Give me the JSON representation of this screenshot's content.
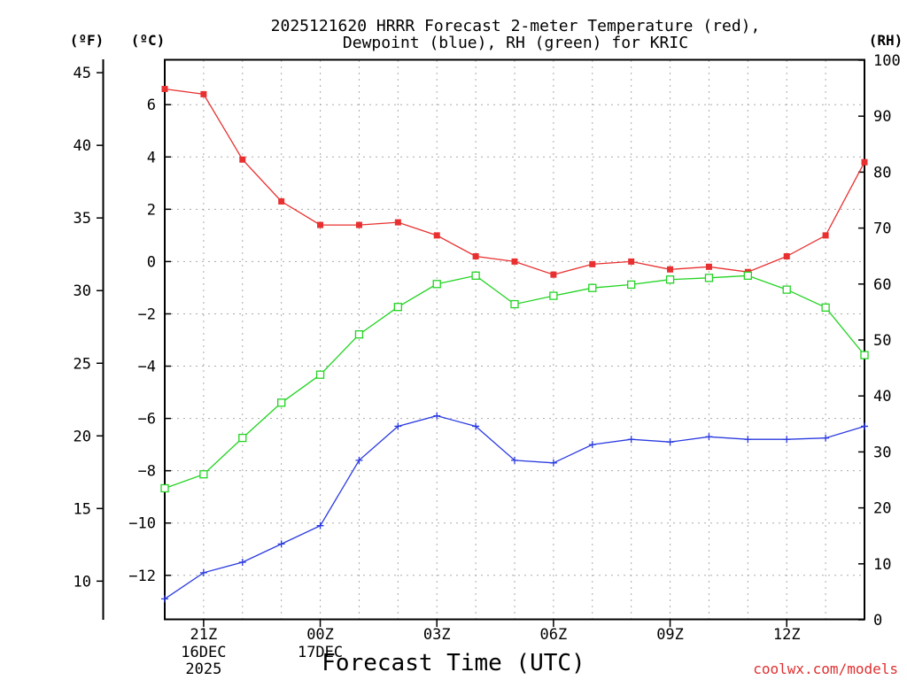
{
  "header": {
    "title_line1": "2025121620 HRRR Forecast 2-meter Temperature (red),",
    "title_line2": "Dewpoint (blue), RH (green) for KRIC",
    "unit_f": "(ºF)",
    "unit_c": "(ºC)",
    "unit_rh": "(RH)"
  },
  "footer": {
    "xlabel": "Forecast Time (UTC)",
    "credit": "coolwx.com/models"
  },
  "chart_data": {
    "type": "line",
    "title": "2025121620 HRRR Forecast 2-meter Temperature (red), Dewpoint (blue), RH (green) for KRIC",
    "xlabel": "Forecast Time (UTC)",
    "x_hours": [
      20,
      21,
      22,
      23,
      24,
      25,
      26,
      27,
      28,
      29,
      30,
      31,
      32,
      33,
      34,
      35,
      36,
      37,
      38
    ],
    "x_ticks": [
      {
        "hour": 21,
        "label": "21Z",
        "sub1": "16DEC",
        "sub2": "2025"
      },
      {
        "hour": 24,
        "label": "00Z",
        "sub1": "17DEC",
        "sub2": ""
      },
      {
        "hour": 27,
        "label": "03Z",
        "sub1": "",
        "sub2": ""
      },
      {
        "hour": 30,
        "label": "06Z",
        "sub1": "",
        "sub2": ""
      },
      {
        "hour": 33,
        "label": "09Z",
        "sub1": "",
        "sub2": ""
      },
      {
        "hour": 36,
        "label": "12Z",
        "sub1": "",
        "sub2": ""
      }
    ],
    "xlim": [
      20,
      38
    ],
    "ylim_celsius": [
      -13.7,
      7.7
    ],
    "ylim_rh": [
      0,
      100
    ],
    "ylim_fahrenheit": [
      7.34,
      45.86
    ],
    "left_ticks_f": [
      10,
      15,
      20,
      25,
      30,
      35,
      40,
      45
    ],
    "left_ticks_c": [
      -12,
      -10,
      -8,
      -6,
      -4,
      -2,
      0,
      2,
      4,
      6
    ],
    "right_ticks_rh": [
      0,
      10,
      20,
      30,
      40,
      50,
      60,
      70,
      80,
      90,
      100
    ],
    "grid": true,
    "series": [
      {
        "name": "Temperature",
        "axis": "celsius",
        "color": "#e83030",
        "marker": "square-filled",
        "values": [
          6.6,
          6.4,
          3.9,
          2.3,
          1.4,
          1.4,
          1.5,
          1.0,
          0.2,
          0.0,
          -0.5,
          -0.1,
          0.0,
          -0.3,
          -0.2,
          -0.4,
          0.2,
          1.0,
          3.8
        ]
      },
      {
        "name": "Dewpoint",
        "axis": "celsius",
        "color": "#2b3be0",
        "marker": "plus",
        "values": [
          -12.9,
          -11.9,
          -11.5,
          -10.8,
          -10.1,
          -7.6,
          -6.3,
          -5.9,
          -6.3,
          -7.6,
          -7.7,
          -7.0,
          -6.8,
          -6.9,
          -6.7,
          -6.8,
          -6.8,
          -6.75,
          -6.3
        ]
      },
      {
        "name": "RH",
        "axis": "rh",
        "color": "#22d422",
        "marker": "square-open",
        "values": [
          23.5,
          26.0,
          32.5,
          38.8,
          43.8,
          51.0,
          55.9,
          60.0,
          61.5,
          56.4,
          57.9,
          59.3,
          59.9,
          60.8,
          61.1,
          61.5,
          59.0,
          55.8,
          47.3
        ]
      }
    ]
  }
}
